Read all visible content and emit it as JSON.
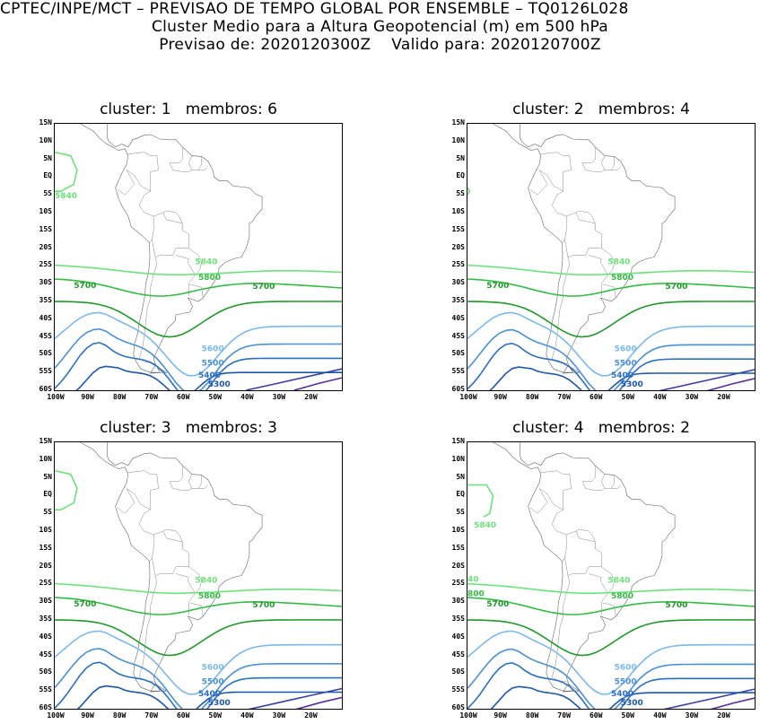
{
  "header": {
    "line1": "CPTEC/INPE/MCT – PREVISAO DE TEMPO GLOBAL POR ENSEMBLE – TQ0126L028",
    "line2": "Cluster Medio para a Altura Geopotencial (m) em 500 hPa",
    "line3": "Previsao de: 2020120300Z    Valido para: 2020120700Z"
  },
  "panels": [
    {
      "title": "cluster: 1   membros: 6"
    },
    {
      "title": "cluster: 2   membros: 4"
    },
    {
      "title": "cluster: 3   membros: 3"
    },
    {
      "title": "cluster: 4   membros: 2"
    }
  ],
  "y_ticks": [
    "15N",
    "10N",
    "5N",
    "EQ",
    "5S",
    "10S",
    "15S",
    "20S",
    "25S",
    "30S",
    "35S",
    "40S",
    "45S",
    "50S",
    "55S",
    "60S"
  ],
  "x_ticks": [
    "100W",
    "90W",
    "80W",
    "70W",
    "60W",
    "50W",
    "40W",
    "30W",
    "20W"
  ],
  "contour_colors": {
    "5840": "#6ee27a",
    "5800": "#33bb44",
    "5700": "#1f9a2a",
    "5600": "#7ab8f0",
    "5500": "#4a90d9",
    "5400": "#2a6fc4",
    "5300": "#1c56b0",
    "5200": "#3a3fa8",
    "5100": "#5a2aa0"
  },
  "contour_labels": {
    "c5840": "5840",
    "c5800": "5800",
    "c5700": "5700",
    "c5600": "5600",
    "c5500": "5500",
    "c5400": "5400",
    "c5300": "5300"
  },
  "panel4_edge_labels": {
    "left5840": "40",
    "left5800": "800"
  }
}
